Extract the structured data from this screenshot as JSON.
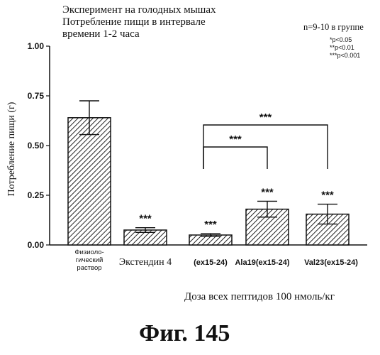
{
  "header": {
    "title_lines": [
      "Эксперимент на голодных мышах",
      "Потребление пищи в интервале",
      "времени 1-2 часа"
    ],
    "group_note": "n=9-10 в группе",
    "p_legend": [
      "*p<0.05",
      "**p<0.01",
      "***p<0.001"
    ]
  },
  "chart_data": {
    "type": "bar",
    "title": "Эксперимент на голодных мышах Потребление пищи в интервале времени 1-2 часа",
    "xlabel": "Доза всех пептидов 100 нмоль/кг",
    "ylabel": "Потребление пищи (г)",
    "ylim": [
      0,
      1.0
    ],
    "yticks": [
      "0.00",
      "0.25",
      "0.50",
      "0.75",
      "1.00"
    ],
    "grid": false,
    "bar_fill": "diagonal-hatch",
    "categories": [
      [
        "Физиоло-",
        "гический",
        "раствор"
      ],
      [
        "Экстендин 4"
      ],
      [
        "(ex15-24)"
      ],
      [
        "Ala19(ex15-24)"
      ],
      [
        "Val23(ex15-24)"
      ]
    ],
    "values": [
      0.64,
      0.075,
      0.05,
      0.18,
      0.155
    ],
    "errors": [
      0.085,
      0.012,
      0.007,
      0.04,
      0.05
    ],
    "significance": [
      "",
      "***",
      "***",
      "***",
      "***"
    ],
    "brackets": [
      {
        "from": 2,
        "to": 3,
        "label": "***"
      },
      {
        "from": 2,
        "to": 4,
        "label": "***"
      }
    ]
  },
  "figure": {
    "caption": "Фиг.  145"
  }
}
